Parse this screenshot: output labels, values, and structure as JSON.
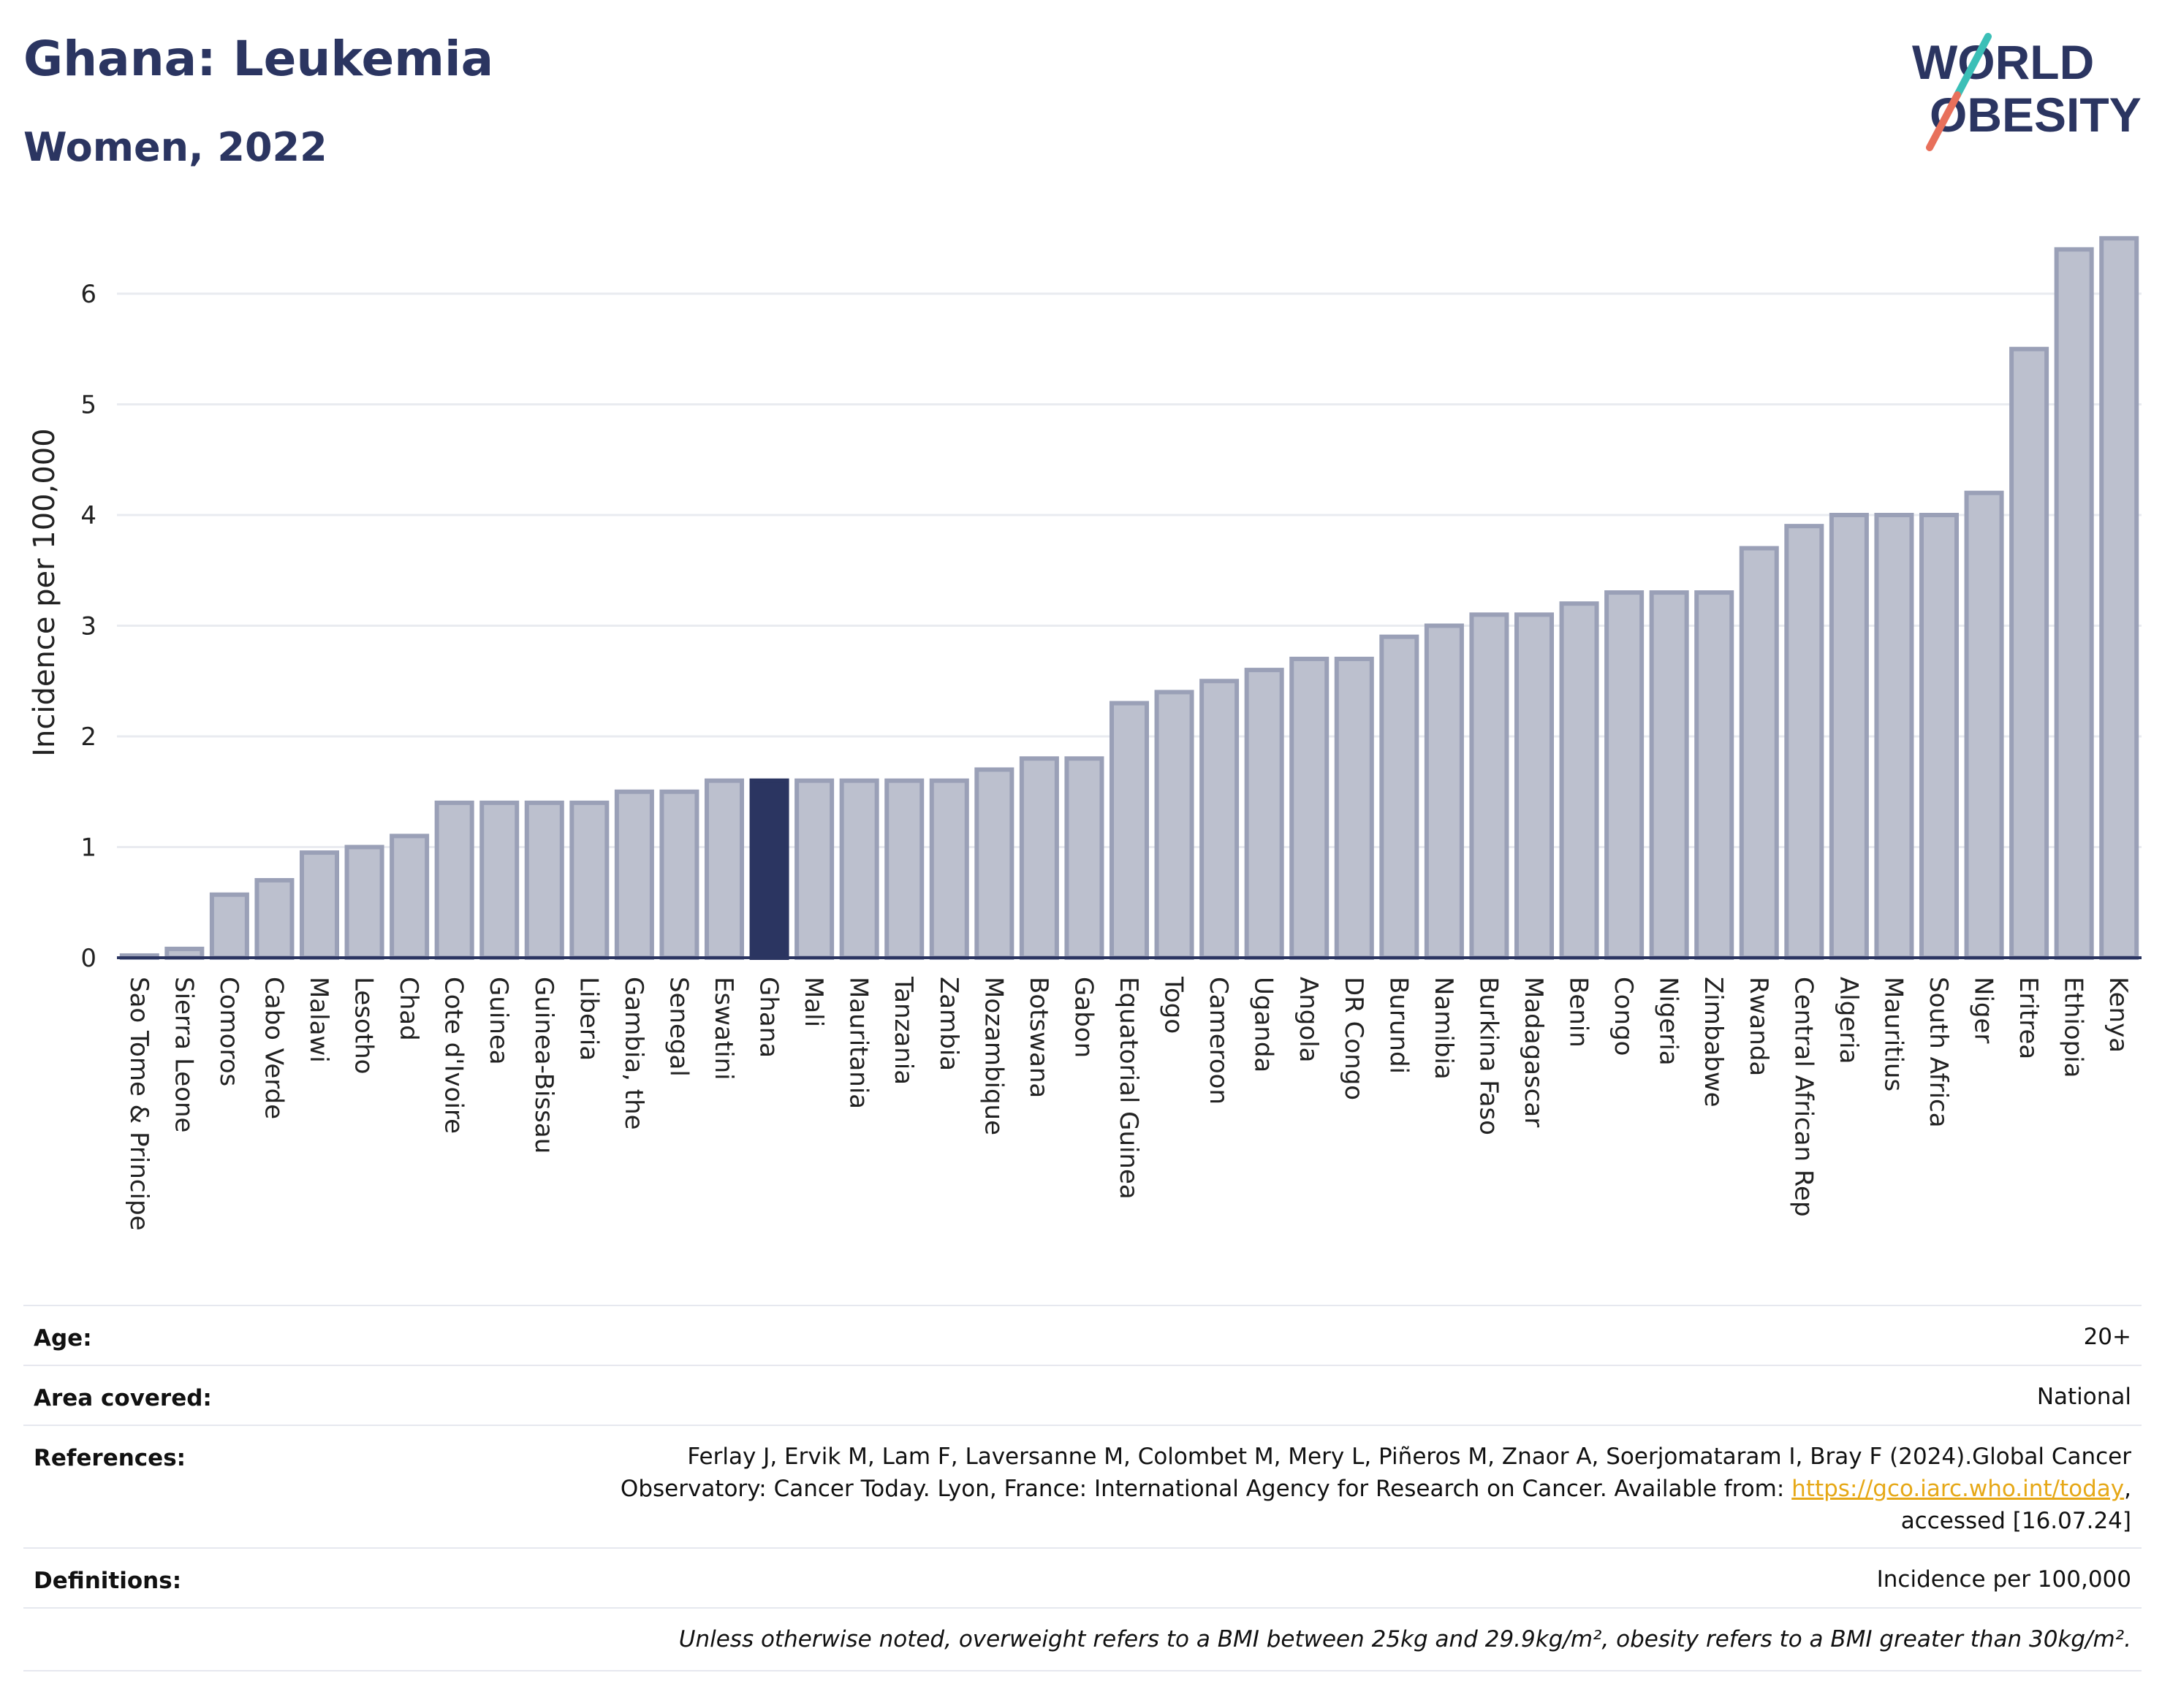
{
  "header": {
    "title": "Ghana: Leukemia",
    "subtitle": "Women, 2022",
    "logo_line1": "WORLD",
    "logo_line2": "OBESITY"
  },
  "chart_data": {
    "type": "bar",
    "ylabel": "Incidence per 100,000",
    "ylim": [
      0,
      6.6
    ],
    "yticks": [
      0,
      1,
      2,
      3,
      4,
      5,
      6
    ],
    "grid": true,
    "highlight": "Ghana",
    "colors": {
      "bar": "#bcc0ce",
      "bar_stroke": "#9aa0b7",
      "highlight": "#2b3561",
      "grid": "#e9ebf0",
      "axis": "#2b3561"
    },
    "categories": [
      "Sao Tome & Principe",
      "Sierra Leone",
      "Comoros",
      "Cabo Verde",
      "Malawi",
      "Lesotho",
      "Chad",
      "Cote d'Ivoire",
      "Guinea",
      "Guinea-Bissau",
      "Liberia",
      "Gambia, the",
      "Senegal",
      "Eswatini",
      "Ghana",
      "Mali",
      "Mauritania",
      "Tanzania",
      "Zambia",
      "Mozambique",
      "Botswana",
      "Gabon",
      "Equatorial Guinea",
      "Togo",
      "Cameroon",
      "Uganda",
      "Angola",
      "DR Congo",
      "Burundi",
      "Namibia",
      "Burkina Faso",
      "Madagascar",
      "Benin",
      "Congo",
      "Nigeria",
      "Zimbabwe",
      "Rwanda",
      "Central African Rep",
      "Algeria",
      "Mauritius",
      "South Africa",
      "Niger",
      "Eritrea",
      "Ethiopia",
      "Kenya"
    ],
    "values": [
      0.02,
      0.08,
      0.57,
      0.7,
      0.95,
      1.0,
      1.1,
      1.4,
      1.4,
      1.4,
      1.4,
      1.5,
      1.5,
      1.6,
      1.6,
      1.6,
      1.6,
      1.6,
      1.6,
      1.7,
      1.8,
      1.8,
      2.3,
      2.4,
      2.5,
      2.6,
      2.7,
      2.7,
      2.9,
      3.0,
      3.1,
      3.1,
      3.2,
      3.3,
      3.3,
      3.3,
      3.7,
      3.9,
      4.0,
      4.0,
      4.0,
      4.2,
      5.5,
      6.4,
      6.5
    ]
  },
  "info": {
    "age_label": "Age:",
    "age_value": "20+",
    "area_label": "Area covered:",
    "area_value": "National",
    "references_label": "References:",
    "references_line1": "Ferlay J, Ervik M, Lam F, Laversanne M, Colombet M, Mery L, Piñeros M, Znaor A, Soerjomataram I, Bray F (2024).Global Cancer",
    "references_line2_pre": "Observatory: Cancer Today. Lyon, France: International Agency for Research on Cancer. Available from: ",
    "references_link": "https://gco.iarc.who.int/today",
    "references_line2_post": ",",
    "references_line3": "accessed [16.07.24]",
    "definitions_label": "Definitions:",
    "definitions_value": "Incidence per 100,000",
    "footnote": "Unless otherwise noted, overweight refers to a BMI between 25kg and 29.9kg/m², obesity refers to a BMI greater than 30kg/m²."
  }
}
